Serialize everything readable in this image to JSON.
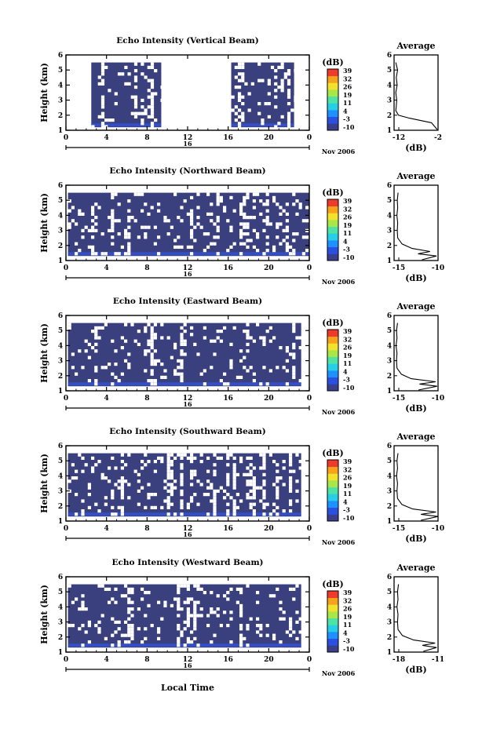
{
  "colorbar": {
    "unit_label": "(dB)",
    "tick_labels": [
      "39",
      "32",
      "26",
      "19",
      "11",
      "4",
      "-3",
      "-10"
    ],
    "colors": [
      "#3a3f8c",
      "#2b4fe0",
      "#1e90ff",
      "#27cfe6",
      "#4fe2a6",
      "#a8e64a",
      "#f2e22c",
      "#f7a21d",
      "#ef3b2c"
    ]
  },
  "colors": {
    "echo_fill": "#3a3f7e",
    "echo_strong": "#3355dd",
    "axis": "#000000"
  },
  "x_axis": {
    "tick_labels": [
      "0",
      "4",
      "8",
      "12",
      "16",
      "20",
      "0"
    ],
    "date_label": "16",
    "month_label": "Nov 2006",
    "xlabel": "Local Time"
  },
  "y_axis": {
    "ylabel": "Height (km)",
    "tick_labels": [
      "1",
      "2",
      "3",
      "4",
      "5",
      "6"
    ]
  },
  "average_title": "Average",
  "average_unit": "(dB)",
  "chart_data": [
    {
      "type": "heatmap",
      "title": "Echo Intensity (Vertical Beam)",
      "xlim": [
        0,
        24
      ],
      "ylim": [
        1,
        6
      ],
      "zlim": [
        -10,
        39
      ],
      "x_ticks": [
        0,
        4,
        8,
        12,
        16,
        20,
        24
      ],
      "coverage": [
        {
          "x": [
            2.5,
            9.4
          ],
          "y": [
            1.2,
            5.5
          ]
        },
        {
          "x": [
            16.3,
            22.5
          ],
          "y": [
            1.2,
            5.5
          ]
        }
      ],
      "average_profile": {
        "xlim": [
          -12,
          -2
        ],
        "x_tick_labels": [
          "-12",
          "-2"
        ],
        "height": [
          1.05,
          1.5,
          1.8,
          2.0,
          2.3,
          2.6,
          3.0,
          3.5,
          4.0,
          4.5,
          5.0,
          5.5
        ],
        "value": [
          -2.2,
          -3.5,
          -8.5,
          -11.0,
          -11.6,
          -11.5,
          -11.4,
          -11.6,
          -11.3,
          -11.5,
          -11.2,
          -11.6
        ]
      }
    },
    {
      "type": "heatmap",
      "title": "Echo Intensity (Northward Beam)",
      "xlim": [
        0,
        24
      ],
      "ylim": [
        1,
        6
      ],
      "zlim": [
        -10,
        39
      ],
      "x_ticks": [
        0,
        4,
        8,
        12,
        16,
        20,
        24
      ],
      "coverage": [
        {
          "x": [
            0.2,
            24
          ],
          "y": [
            1.3,
            5.5
          ]
        }
      ],
      "average_profile": {
        "xlim": [
          -19,
          -8
        ],
        "x_tick_labels": [
          "-15",
          "-10"
        ],
        "height": [
          1.05,
          1.3,
          1.45,
          1.6,
          1.8,
          2.1,
          2.5,
          3.0,
          3.5,
          4.0,
          4.5,
          5.0,
          5.5
        ],
        "value": [
          -12.0,
          -8.4,
          -13.0,
          -10.0,
          -14.5,
          -17.0,
          -18.1,
          -18.2,
          -18.1,
          -18.3,
          -18.1,
          -18.2,
          -18.0
        ]
      }
    },
    {
      "type": "heatmap",
      "title": "Echo Intensity (Eastward Beam)",
      "xlim": [
        0,
        24
      ],
      "ylim": [
        1,
        6
      ],
      "zlim": [
        -10,
        39
      ],
      "x_ticks": [
        0,
        4,
        8,
        12,
        16,
        20,
        24
      ],
      "coverage": [
        {
          "x": [
            0.2,
            23.2
          ],
          "y": [
            1.3,
            5.5
          ]
        }
      ],
      "average_profile": {
        "xlim": [
          -19,
          -10
        ],
        "x_tick_labels": [
          "-15",
          "-10"
        ],
        "height": [
          1.05,
          1.3,
          1.45,
          1.6,
          1.8,
          2.1,
          2.5,
          3.0,
          3.5,
          4.0,
          4.5,
          5.0,
          5.5
        ],
        "value": [
          -14.0,
          -10.2,
          -13.8,
          -10.5,
          -15.5,
          -17.5,
          -18.4,
          -18.5,
          -18.4,
          -18.6,
          -18.4,
          -18.5,
          -18.3
        ]
      }
    },
    {
      "type": "heatmap",
      "title": "Echo Intensity (Southward Beam)",
      "xlim": [
        0,
        24
      ],
      "ylim": [
        1,
        6
      ],
      "zlim": [
        -10,
        39
      ],
      "x_ticks": [
        0,
        4,
        8,
        12,
        16,
        20,
        24
      ],
      "coverage": [
        {
          "x": [
            0.2,
            23.2
          ],
          "y": [
            1.3,
            5.5
          ]
        }
      ],
      "average_profile": {
        "xlim": [
          -19,
          -10
        ],
        "x_tick_labels": [
          "-15",
          "-10"
        ],
        "height": [
          1.05,
          1.3,
          1.45,
          1.6,
          1.8,
          2.1,
          2.5,
          3.0,
          3.5,
          4.0,
          4.5,
          5.0,
          5.5
        ],
        "value": [
          -13.5,
          -10.0,
          -13.5,
          -10.4,
          -15.2,
          -17.4,
          -18.3,
          -18.4,
          -18.3,
          -18.5,
          -18.3,
          -18.4,
          -18.2
        ]
      }
    },
    {
      "type": "heatmap",
      "title": "Echo Intensity (Westward Beam)",
      "xlim": [
        0,
        24
      ],
      "ylim": [
        1,
        6
      ],
      "zlim": [
        -10,
        39
      ],
      "x_ticks": [
        0,
        4,
        8,
        12,
        16,
        20,
        24
      ],
      "coverage": [
        {
          "x": [
            0.2,
            23.2
          ],
          "y": [
            1.3,
            5.5
          ]
        }
      ],
      "average_profile": {
        "xlim": [
          -19,
          -10
        ],
        "x_tick_labels": [
          "-18",
          "-11"
        ],
        "height": [
          1.05,
          1.3,
          1.45,
          1.6,
          1.8,
          2.1,
          2.5,
          3.0,
          3.5,
          4.0,
          4.5,
          5.0,
          5.5
        ],
        "value": [
          -13.0,
          -10.3,
          -13.2,
          -10.6,
          -15.0,
          -17.3,
          -18.2,
          -18.3,
          -18.2,
          -18.4,
          -18.2,
          -18.3,
          -18.1
        ]
      }
    }
  ]
}
